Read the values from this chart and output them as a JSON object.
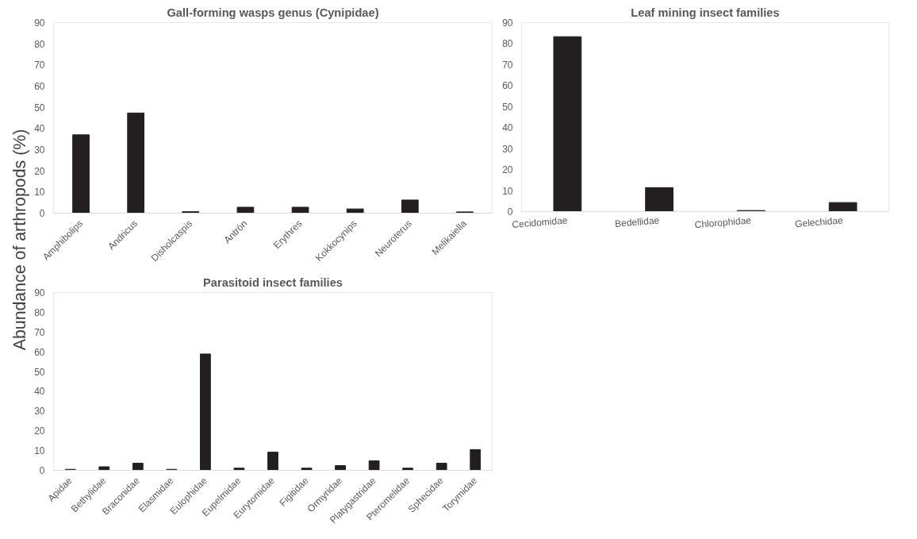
{
  "chart_data": [
    {
      "type": "bar",
      "title": "Gall-forming wasps genus (Cynipidae)",
      "ylabel": "Abundance of arthropods (%)",
      "categories": [
        "Amphibolips",
        "Andricus",
        "Disholcaspis",
        "Antrón",
        "Erythres",
        "Kokkocynips",
        "Neuroterus",
        "Melikaiella"
      ],
      "values": [
        37,
        47.3,
        0.7,
        2.8,
        2.8,
        2,
        6.2,
        0.6
      ],
      "color": "#231f20",
      "ylim": [
        0,
        90
      ],
      "yticks": [
        0,
        10,
        20,
        30,
        40,
        50,
        60,
        70,
        80,
        90
      ],
      "grid": false
    },
    {
      "type": "bar",
      "title": "Leaf mining insect families",
      "categories": [
        "Cecidomidae",
        "Bedellidae",
        "Chlorophidae",
        "Gelechidae"
      ],
      "values": [
        83.3,
        11.4,
        0.5,
        4.3
      ],
      "color": "#231f20",
      "ylim": [
        0,
        90
      ],
      "yticks": [
        0,
        10,
        20,
        30,
        40,
        50,
        60,
        70,
        80,
        90
      ],
      "grid": false
    },
    {
      "type": "bar",
      "title": "Parasitoid insect families",
      "categories": [
        "Apidae",
        "Bethylidae",
        "Braconidae",
        "Elasmidae",
        "Eulophidae",
        "Eupelmidae",
        "Eurytomidae",
        "Figitidae",
        "Ormyridae",
        "Platygastridae",
        "Pteromelidae",
        "Sphecidae",
        "Torymidae"
      ],
      "values": [
        0.5,
        1.8,
        3.6,
        0.5,
        58.9,
        1.1,
        9.2,
        1.1,
        2.4,
        4.8,
        1.1,
        3.6,
        10.5
      ],
      "color": "#231f20",
      "ylim": [
        0,
        90
      ],
      "yticks": [
        0,
        10,
        20,
        30,
        40,
        50,
        60,
        70,
        80,
        90
      ],
      "grid": false
    }
  ]
}
